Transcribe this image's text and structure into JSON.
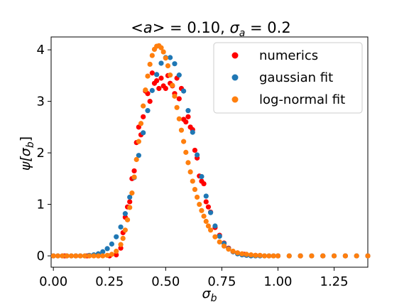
{
  "chart_data": {
    "type": "scatter",
    "title": "<a> = 0.10, σ_a = 0.2",
    "title_parts": {
      "lhs": "<",
      "a": "a",
      "rhs": "> = 0.10, ",
      "sigma": "σ",
      "sub": "a",
      "eq": " = 0.2"
    },
    "xlabel": {
      "sym": "σ",
      "sub": "b"
    },
    "ylabel": {
      "sym": "ψ[σ",
      "sub": "b",
      "close": "]"
    },
    "xlim": [
      -0.01,
      1.4
    ],
    "ylim": [
      -0.22,
      4.25
    ],
    "xticks": [
      0.0,
      0.25,
      0.5,
      0.75,
      1.0,
      1.25
    ],
    "xtick_labels": [
      "0.00",
      "0.25",
      "0.50",
      "0.75",
      "1.00",
      "1.25"
    ],
    "yticks": [
      0,
      1,
      2,
      3,
      4
    ],
    "ytick_labels": [
      "0",
      "1",
      "2",
      "3",
      "4"
    ],
    "grid": false,
    "legend_position": "top-right",
    "series": [
      {
        "name": "numerics",
        "color": "#ff0000",
        "x": [
          0.0,
          0.05,
          0.1,
          0.15,
          0.2,
          0.25,
          0.28,
          0.3,
          0.31,
          0.32,
          0.33,
          0.34,
          0.35,
          0.36,
          0.37,
          0.38,
          0.39,
          0.4,
          0.41,
          0.42,
          0.43,
          0.44,
          0.45,
          0.46,
          0.47,
          0.48,
          0.49,
          0.5,
          0.51,
          0.52,
          0.53,
          0.54,
          0.55,
          0.56,
          0.57,
          0.58,
          0.59,
          0.6,
          0.61,
          0.62,
          0.63,
          0.64,
          0.65,
          0.66,
          0.67,
          0.68,
          0.69,
          0.7,
          0.72,
          0.74,
          0.76,
          0.78,
          0.8,
          0.85,
          0.9,
          1.0,
          1.1,
          1.2,
          1.3,
          1.4
        ],
        "y": [
          0,
          0,
          0,
          0,
          0,
          0,
          0.02,
          0.15,
          0.45,
          0.75,
          0.95,
          1.05,
          1.5,
          1.65,
          2.2,
          2.5,
          2.35,
          2.7,
          3.2,
          3.15,
          3.0,
          3.55,
          3.35,
          3.4,
          3.25,
          3.45,
          3.3,
          3.25,
          3.5,
          3.35,
          3.3,
          3.15,
          3.45,
          3.05,
          3.25,
          2.65,
          2.6,
          2.7,
          2.5,
          2.45,
          2.05,
          1.9,
          1.55,
          1.45,
          1.4,
          1.05,
          0.95,
          0.85,
          0.55,
          0.4,
          0.25,
          0.15,
          0.08,
          0.03,
          0.01,
          0,
          0,
          0,
          0,
          0
        ]
      },
      {
        "name": "gaussian fit",
        "color": "#1f77b4",
        "x": [
          0.0,
          0.02,
          0.04,
          0.06,
          0.08,
          0.1,
          0.12,
          0.14,
          0.16,
          0.18,
          0.2,
          0.22,
          0.24,
          0.26,
          0.28,
          0.3,
          0.32,
          0.34,
          0.36,
          0.38,
          0.4,
          0.42,
          0.44,
          0.46,
          0.48,
          0.5,
          0.52,
          0.54,
          0.56,
          0.58,
          0.6,
          0.62,
          0.64,
          0.66,
          0.68,
          0.7,
          0.72,
          0.74,
          0.76,
          0.78,
          0.8,
          0.82,
          0.84,
          0.86,
          0.88,
          0.9,
          0.92,
          0.94,
          0.96,
          0.98,
          1.0,
          1.05,
          1.1,
          1.15,
          1.2,
          1.25,
          1.3,
          1.35,
          1.4
        ],
        "y": [
          0,
          0,
          0,
          0,
          0,
          0,
          0,
          0,
          0.01,
          0.02,
          0.04,
          0.08,
          0.14,
          0.23,
          0.37,
          0.56,
          0.82,
          1.14,
          1.52,
          1.95,
          2.39,
          2.82,
          3.21,
          3.52,
          3.74,
          3.85,
          3.85,
          3.73,
          3.51,
          3.2,
          2.82,
          2.4,
          1.96,
          1.54,
          1.16,
          0.84,
          0.58,
          0.38,
          0.24,
          0.14,
          0.08,
          0.04,
          0.02,
          0.01,
          0,
          0,
          0,
          0,
          0,
          0,
          0,
          0,
          0,
          0,
          0,
          0,
          0,
          0,
          0
        ]
      },
      {
        "name": "log-normal fit",
        "color": "#ff7f0e",
        "x": [
          0.0,
          0.02,
          0.04,
          0.06,
          0.08,
          0.1,
          0.12,
          0.14,
          0.16,
          0.18,
          0.2,
          0.22,
          0.24,
          0.26,
          0.28,
          0.3,
          0.31,
          0.32,
          0.33,
          0.34,
          0.35,
          0.36,
          0.37,
          0.38,
          0.39,
          0.4,
          0.41,
          0.42,
          0.43,
          0.44,
          0.45,
          0.46,
          0.47,
          0.48,
          0.49,
          0.5,
          0.51,
          0.52,
          0.53,
          0.54,
          0.55,
          0.56,
          0.57,
          0.58,
          0.59,
          0.6,
          0.61,
          0.62,
          0.63,
          0.64,
          0.65,
          0.66,
          0.67,
          0.68,
          0.69,
          0.7,
          0.72,
          0.74,
          0.76,
          0.78,
          0.8,
          0.82,
          0.84,
          0.86,
          0.88,
          0.9,
          0.92,
          0.94,
          0.96,
          0.98,
          1.0,
          1.05,
          1.1,
          1.15,
          1.2,
          1.25,
          1.3,
          1.35,
          1.4
        ],
        "y": [
          0,
          0,
          0,
          0,
          0,
          0,
          0,
          0,
          0,
          0,
          0,
          0,
          0.01,
          0.03,
          0.09,
          0.22,
          0.34,
          0.5,
          0.7,
          0.94,
          1.22,
          1.53,
          1.87,
          2.22,
          2.57,
          2.91,
          3.22,
          3.49,
          3.72,
          3.89,
          4.01,
          4.07,
          4.08,
          4.04,
          3.96,
          3.84,
          3.69,
          3.51,
          3.31,
          3.1,
          2.88,
          2.66,
          2.44,
          2.22,
          2.01,
          1.81,
          1.63,
          1.45,
          1.29,
          1.14,
          1.0,
          0.88,
          0.77,
          0.67,
          0.58,
          0.5,
          0.37,
          0.27,
          0.19,
          0.13,
          0.09,
          0.06,
          0.04,
          0.03,
          0.02,
          0.01,
          0.01,
          0,
          0,
          0,
          0,
          0,
          0,
          0,
          0,
          0,
          0,
          0,
          0
        ]
      }
    ]
  }
}
